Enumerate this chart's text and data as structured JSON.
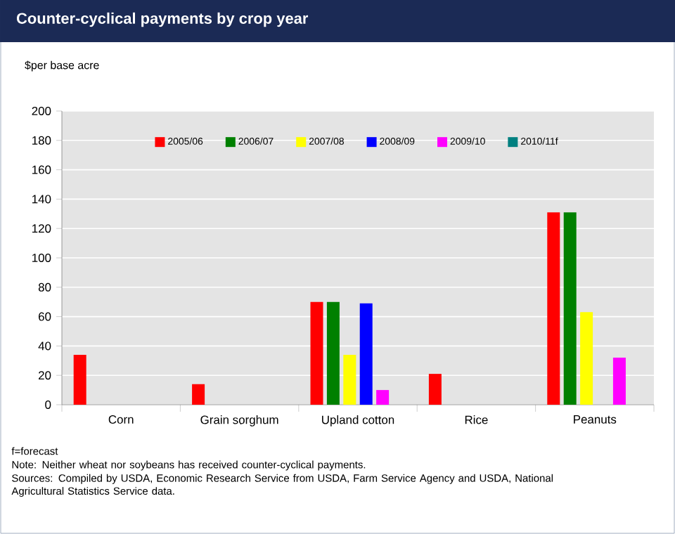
{
  "chart_data": {
    "type": "bar",
    "title": "Counter-cyclical payments by crop year",
    "ylabel": "$per base acre",
    "categories": [
      "Corn",
      "Grain sorghum",
      "Upland cotton",
      "Rice",
      "Peanuts"
    ],
    "series": [
      {
        "name": "2005/06",
        "color": "#ff0000",
        "values": [
          34,
          14,
          70,
          21,
          131
        ]
      },
      {
        "name": "2006/07",
        "color": "#008000",
        "values": [
          0,
          0,
          70,
          0,
          131
        ]
      },
      {
        "name": "2007/08",
        "color": "#ffff00",
        "values": [
          0,
          0,
          34,
          0,
          63
        ]
      },
      {
        "name": "2008/09",
        "color": "#0000ff",
        "values": [
          0,
          0,
          69,
          0,
          0
        ]
      },
      {
        "name": "2009/10",
        "color": "#ff00ff",
        "values": [
          0,
          0,
          10,
          0,
          32
        ]
      },
      {
        "name": "2010/11f",
        "color": "#008080",
        "values": [
          0,
          0,
          0,
          0,
          0
        ]
      }
    ],
    "ylim": [
      0,
      200
    ],
    "yticks": [
      0,
      20,
      40,
      60,
      80,
      100,
      120,
      140,
      160,
      180,
      200
    ],
    "grid": "y",
    "legend": "top",
    "annotations": [
      "f=forecast",
      "Note: Neither wheat nor soybeans has received counter-cyclical payments.",
      "Sources: Compiled by USDA, Economic Research Service from USDA, Farm Service Agency and USDA, National Agricultural Statistics Service data."
    ]
  }
}
